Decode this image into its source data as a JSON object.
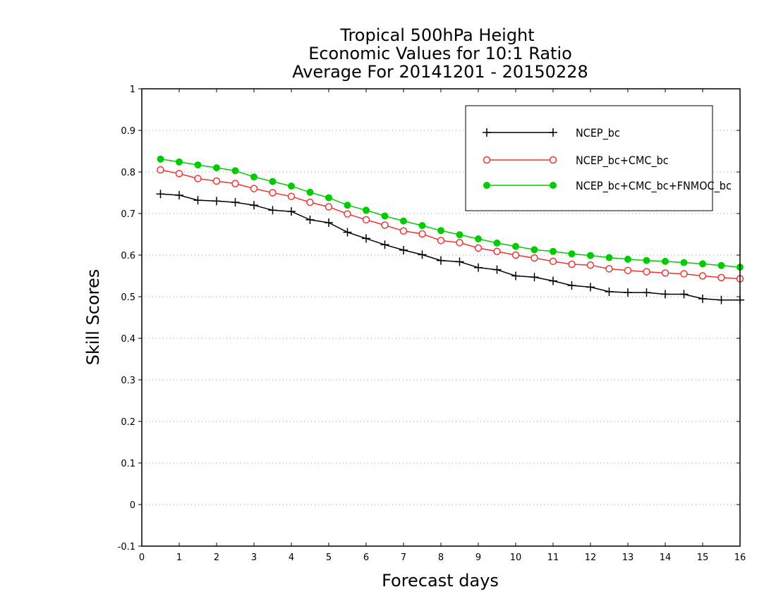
{
  "chart_data": {
    "type": "line",
    "title_lines": [
      "Tropical 500hPa Height",
      "Economic Values for 10:1 Ratio",
      "Average For 20141201 - 20150228"
    ],
    "xlabel": "Forecast days",
    "ylabel": "Skill Scores",
    "xlim": [
      0,
      16
    ],
    "ylim": [
      -0.1,
      1
    ],
    "x_ticks": [
      0,
      1,
      2,
      3,
      4,
      5,
      6,
      7,
      8,
      9,
      10,
      11,
      12,
      13,
      14,
      15,
      16
    ],
    "y_ticks": [
      -0.1,
      0,
      0.1,
      0.2,
      0.3,
      0.4,
      0.5,
      0.6,
      0.7,
      0.8,
      0.9,
      1
    ],
    "y_tick_labels": [
      "-0.1",
      "0",
      "0.1",
      "0.2",
      "0.3",
      "0.4",
      "0.5",
      "0.6",
      "0.7",
      "0.8",
      "0.9",
      "1"
    ],
    "grid": "horizontal dotted",
    "legend_position": "top-right",
    "x": [
      0.5,
      1,
      1.5,
      2,
      2.5,
      3,
      3.5,
      4,
      4.5,
      5,
      5.5,
      6,
      6.5,
      7,
      7.5,
      8,
      8.5,
      9,
      9.5,
      10,
      10.5,
      11,
      11.5,
      12,
      12.5,
      13,
      13.5,
      14,
      14.5,
      15,
      15.5,
      16
    ],
    "series": [
      {
        "name": "NCEP_bc",
        "color": "#000000",
        "marker": "plus",
        "values": [
          0.747,
          0.744,
          0.732,
          0.73,
          0.727,
          0.72,
          0.708,
          0.705,
          0.685,
          0.678,
          0.655,
          0.64,
          0.625,
          0.612,
          0.601,
          0.587,
          0.584,
          0.57,
          0.565,
          0.55,
          0.547,
          0.538,
          0.527,
          0.523,
          0.512,
          0.51,
          0.51,
          0.506,
          0.506,
          0.495,
          0.492,
          0.492
        ]
      },
      {
        "name": "NCEP_bc+CMC_bc",
        "color": "#ee3333",
        "marker": "open-circle",
        "values": [
          0.805,
          0.796,
          0.784,
          0.778,
          0.772,
          0.76,
          0.75,
          0.741,
          0.727,
          0.716,
          0.699,
          0.685,
          0.672,
          0.658,
          0.651,
          0.635,
          0.63,
          0.617,
          0.609,
          0.6,
          0.593,
          0.585,
          0.578,
          0.576,
          0.567,
          0.563,
          0.56,
          0.557,
          0.555,
          0.55,
          0.546,
          0.543
        ]
      },
      {
        "name": "NCEP_bc+CMC_bc+FNMOC_bc",
        "color": "#00cc00",
        "marker": "filled-circle",
        "values": [
          0.831,
          0.824,
          0.817,
          0.81,
          0.803,
          0.788,
          0.777,
          0.766,
          0.751,
          0.738,
          0.72,
          0.708,
          0.694,
          0.682,
          0.671,
          0.659,
          0.649,
          0.639,
          0.629,
          0.621,
          0.613,
          0.609,
          0.603,
          0.599,
          0.594,
          0.59,
          0.587,
          0.585,
          0.582,
          0.579,
          0.575,
          0.571
        ]
      }
    ]
  }
}
